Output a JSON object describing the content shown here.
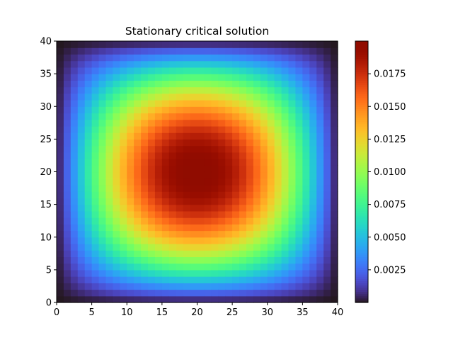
{
  "chart_data": {
    "type": "heatmap",
    "title": "Stationary critical solution",
    "xlabel": "",
    "ylabel": "",
    "grid_size": 40,
    "xlim": [
      0,
      40
    ],
    "ylim": [
      0,
      40
    ],
    "x_ticks": [
      0,
      5,
      10,
      15,
      20,
      25,
      30,
      35,
      40
    ],
    "y_ticks": [
      0,
      5,
      10,
      15,
      20,
      25,
      30,
      35,
      40
    ],
    "colormap": "turbo",
    "value_min": 0.0,
    "value_max": 0.02,
    "field_description": "smooth single bump, zero on the boundary, peak at center (20, 20)",
    "colorbar": {
      "ticks": [
        0.0025,
        0.005,
        0.0075,
        0.01,
        0.0125,
        0.015,
        0.0175
      ],
      "tick_labels": [
        "0.0025",
        "0.0050",
        "0.0075",
        "0.0100",
        "0.0125",
        "0.0150",
        "0.0175"
      ]
    },
    "legend": "none",
    "grid": false
  }
}
